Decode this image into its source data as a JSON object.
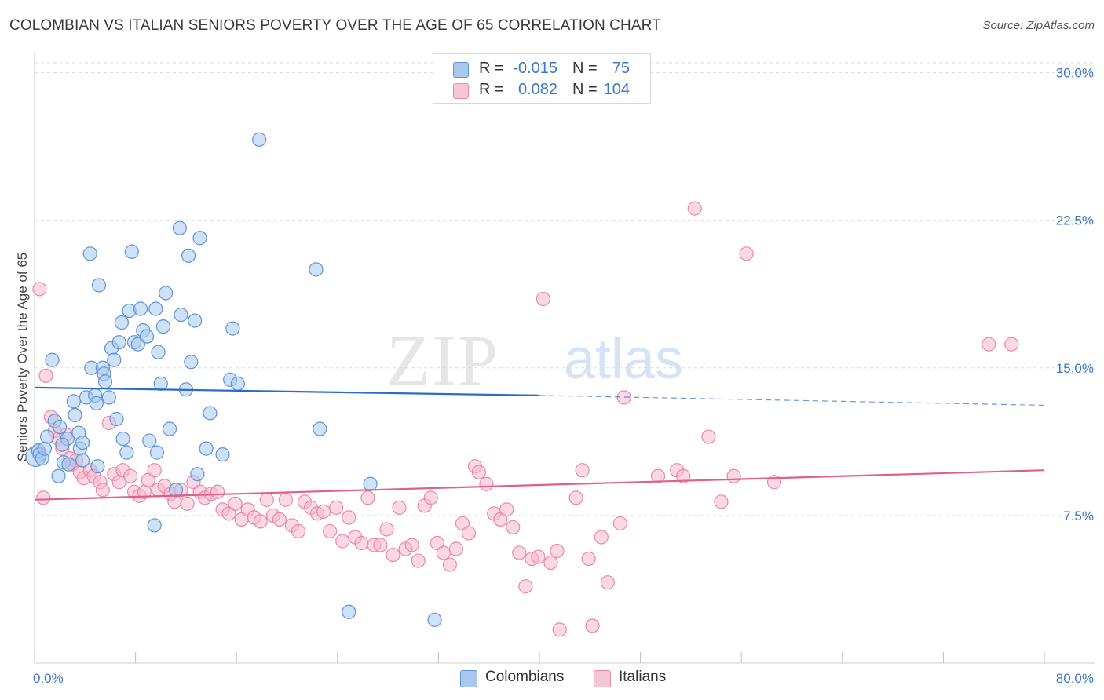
{
  "header": {
    "title": "COLOMBIAN VS ITALIAN SENIORS POVERTY OVER THE AGE OF 65 CORRELATION CHART",
    "source": "Source: ZipAtlas.com"
  },
  "watermark": {
    "zip": "ZIP",
    "atlas": "atlas"
  },
  "legend": {
    "rows": [
      {
        "r_label": "R =",
        "r_value": "-0.015",
        "n_label": "N =",
        "n_value": "75"
      },
      {
        "r_label": "R =",
        "r_value": "0.082",
        "n_label": "N =",
        "n_value": "104"
      }
    ]
  },
  "bottom_legend": {
    "colombians": "Colombians",
    "italians": "Italians"
  },
  "colors": {
    "colombian_fill": "#a8c8f0",
    "colombian_stroke": "#5f93d6",
    "colombian_line": "#2a6dc9",
    "italian_fill": "#f7b8cc",
    "italian_stroke": "#e989a8",
    "italian_line": "#e0608a",
    "tick_text": "#3a78c9",
    "grid": "#dcdcdc"
  },
  "chart_data": {
    "type": "scatter",
    "title": "COLOMBIAN VS ITALIAN SENIORS POVERTY OVER THE AGE OF 65 CORRELATION CHART",
    "xlabel": "",
    "ylabel": "Seniors Poverty Over the Age of 65",
    "xlim": [
      0,
      80
    ],
    "ylim": [
      0,
      30.5
    ],
    "x_tick_labels": [
      "0.0%",
      "80.0%"
    ],
    "y_ticks": [
      7.5,
      15.0,
      22.5,
      30.0
    ],
    "y_tick_labels": [
      "7.5%",
      "15.0%",
      "22.5%",
      "30.0%"
    ],
    "grid": "horizontal dashed",
    "legend_position": "top-center",
    "series": [
      {
        "name": "Colombians",
        "r": -0.015,
        "n": 75,
        "trend": {
          "x": [
            0,
            40
          ],
          "y": [
            14.0,
            13.6
          ],
          "dashed_extension": {
            "x": [
              40,
              80
            ],
            "y": [
              13.6,
              13.1
            ]
          }
        },
        "points": [
          [
            0.1,
            10.5,
            1.5
          ],
          [
            0.3,
            10.8,
            1
          ],
          [
            0.4,
            10.6,
            1
          ],
          [
            0.6,
            10.4,
            1
          ],
          [
            0.8,
            10.9,
            1
          ],
          [
            1.0,
            11.5,
            1
          ],
          [
            1.4,
            15.4,
            1
          ],
          [
            1.6,
            12.3,
            1
          ],
          [
            1.9,
            9.5,
            1
          ],
          [
            2.0,
            12.0,
            1
          ],
          [
            2.3,
            10.2,
            1
          ],
          [
            2.6,
            11.4,
            1
          ],
          [
            2.7,
            10.1,
            1
          ],
          [
            3.1,
            13.3,
            1
          ],
          [
            3.2,
            12.6,
            1
          ],
          [
            3.5,
            11.7,
            1
          ],
          [
            3.6,
            10.9,
            1
          ],
          [
            3.8,
            10.3,
            1
          ],
          [
            4.1,
            13.5,
            1
          ],
          [
            4.4,
            20.8,
            1
          ],
          [
            4.5,
            15.0,
            1
          ],
          [
            4.8,
            13.6,
            1
          ],
          [
            4.9,
            13.2,
            1
          ],
          [
            5.1,
            19.2,
            1
          ],
          [
            5.4,
            15.0,
            1
          ],
          [
            5.5,
            14.7,
            1
          ],
          [
            5.6,
            14.3,
            1
          ],
          [
            5.9,
            13.5,
            1
          ],
          [
            6.1,
            16.0,
            1
          ],
          [
            6.3,
            15.4,
            1
          ],
          [
            6.5,
            12.4,
            1
          ],
          [
            6.7,
            16.3,
            1
          ],
          [
            6.9,
            17.3,
            1
          ],
          [
            7.0,
            11.4,
            1
          ],
          [
            7.3,
            10.7,
            1
          ],
          [
            7.5,
            17.9,
            1
          ],
          [
            7.7,
            20.9,
            1
          ],
          [
            7.9,
            16.3,
            1
          ],
          [
            8.2,
            16.2,
            1
          ],
          [
            8.4,
            18.0,
            1
          ],
          [
            8.6,
            16.9,
            1
          ],
          [
            8.9,
            16.6,
            1
          ],
          [
            9.1,
            11.3,
            1
          ],
          [
            9.6,
            18.0,
            1
          ],
          [
            9.7,
            10.7,
            1
          ],
          [
            9.8,
            15.8,
            1
          ],
          [
            10.0,
            14.2,
            1
          ],
          [
            10.2,
            17.1,
            1
          ],
          [
            10.4,
            18.8,
            1
          ],
          [
            10.7,
            11.9,
            1
          ],
          [
            11.2,
            8.8,
            1
          ],
          [
            11.5,
            22.1,
            1
          ],
          [
            11.6,
            17.7,
            1
          ],
          [
            12.0,
            13.9,
            1
          ],
          [
            12.2,
            20.7,
            1
          ],
          [
            12.4,
            15.3,
            1
          ],
          [
            12.7,
            17.4,
            1
          ],
          [
            12.9,
            9.6,
            1
          ],
          [
            13.1,
            21.6,
            1
          ],
          [
            13.6,
            10.9,
            1
          ],
          [
            13.9,
            12.7,
            1
          ],
          [
            14.9,
            10.6,
            1
          ],
          [
            15.5,
            14.4,
            1
          ],
          [
            15.7,
            17.0,
            1
          ],
          [
            16.1,
            14.2,
            1
          ],
          [
            17.8,
            26.6,
            1
          ],
          [
            22.3,
            20.0,
            1
          ],
          [
            22.6,
            11.9,
            1
          ],
          [
            24.9,
            2.6,
            1
          ],
          [
            26.6,
            9.1,
            1
          ],
          [
            31.7,
            2.2,
            1
          ],
          [
            9.5,
            7.0,
            1
          ],
          [
            3.8,
            11.2,
            1
          ],
          [
            5.0,
            10.0,
            1
          ],
          [
            2.2,
            11.1,
            1
          ]
        ]
      },
      {
        "name": "Italians",
        "r": 0.082,
        "n": 104,
        "trend": {
          "x": [
            0,
            80
          ],
          "y": [
            8.3,
            9.8
          ]
        },
        "points": [
          [
            0.4,
            19.0,
            1
          ],
          [
            0.9,
            14.6,
            1
          ],
          [
            1.3,
            12.5,
            1
          ],
          [
            1.6,
            11.8,
            1
          ],
          [
            1.9,
            11.4,
            1
          ],
          [
            2.2,
            10.9,
            1
          ],
          [
            2.5,
            11.6,
            1
          ],
          [
            2.8,
            10.4,
            1
          ],
          [
            3.0,
            10.1,
            1
          ],
          [
            3.3,
            10.3,
            1
          ],
          [
            3.6,
            9.7,
            1
          ],
          [
            3.9,
            9.4,
            1
          ],
          [
            4.4,
            9.8,
            1
          ],
          [
            4.7,
            9.5,
            1
          ],
          [
            5.2,
            9.2,
            1
          ],
          [
            5.4,
            8.8,
            1
          ],
          [
            5.9,
            12.2,
            1
          ],
          [
            6.3,
            9.6,
            1
          ],
          [
            6.7,
            9.2,
            1
          ],
          [
            7.0,
            9.8,
            1
          ],
          [
            7.6,
            9.5,
            1
          ],
          [
            7.9,
            8.7,
            1
          ],
          [
            8.3,
            8.5,
            1
          ],
          [
            8.7,
            8.7,
            1
          ],
          [
            9.0,
            9.3,
            1
          ],
          [
            9.5,
            9.8,
            1
          ],
          [
            9.8,
            8.8,
            1
          ],
          [
            10.3,
            9.0,
            1
          ],
          [
            10.8,
            8.6,
            1
          ],
          [
            11.1,
            8.2,
            1
          ],
          [
            11.6,
            8.8,
            1
          ],
          [
            12.1,
            8.1,
            1
          ],
          [
            12.6,
            9.2,
            1
          ],
          [
            13.1,
            8.7,
            1
          ],
          [
            13.5,
            8.4,
            1
          ],
          [
            14.0,
            8.6,
            1
          ],
          [
            14.5,
            8.7,
            1
          ],
          [
            14.9,
            7.8,
            1
          ],
          [
            15.4,
            7.6,
            1
          ],
          [
            15.9,
            8.1,
            1
          ],
          [
            16.4,
            7.3,
            1
          ],
          [
            16.9,
            7.8,
            1
          ],
          [
            17.4,
            7.4,
            1
          ],
          [
            17.9,
            7.2,
            1
          ],
          [
            18.4,
            8.3,
            1
          ],
          [
            18.9,
            7.5,
            1
          ],
          [
            19.4,
            7.3,
            1
          ],
          [
            19.9,
            8.3,
            1
          ],
          [
            20.4,
            7.0,
            1
          ],
          [
            20.9,
            6.7,
            1
          ],
          [
            21.4,
            8.2,
            1
          ],
          [
            21.9,
            7.9,
            1
          ],
          [
            22.4,
            7.6,
            1
          ],
          [
            22.9,
            7.7,
            1
          ],
          [
            23.4,
            6.7,
            1
          ],
          [
            23.9,
            7.9,
            1
          ],
          [
            24.4,
            6.2,
            1
          ],
          [
            24.9,
            7.4,
            1
          ],
          [
            25.4,
            6.4,
            1
          ],
          [
            25.9,
            6.1,
            1
          ],
          [
            26.4,
            8.4,
            1
          ],
          [
            26.9,
            6.0,
            1
          ],
          [
            27.4,
            6.0,
            1
          ],
          [
            27.9,
            6.8,
            1
          ],
          [
            28.4,
            5.5,
            1
          ],
          [
            28.9,
            7.9,
            1
          ],
          [
            29.4,
            5.8,
            1
          ],
          [
            29.9,
            6.0,
            1
          ],
          [
            30.4,
            5.2,
            1
          ],
          [
            30.9,
            8.0,
            1
          ],
          [
            31.4,
            8.4,
            1
          ],
          [
            31.9,
            6.1,
            1
          ],
          [
            32.4,
            5.6,
            1
          ],
          [
            32.9,
            5.0,
            1
          ],
          [
            33.4,
            5.8,
            1
          ],
          [
            33.9,
            7.1,
            1
          ],
          [
            34.4,
            6.6,
            1
          ],
          [
            34.9,
            10.0,
            1
          ],
          [
            35.2,
            9.7,
            1
          ],
          [
            35.8,
            9.1,
            1
          ],
          [
            36.4,
            7.6,
            1
          ],
          [
            36.9,
            7.3,
            1
          ],
          [
            37.4,
            7.8,
            1
          ],
          [
            37.9,
            6.9,
            1
          ],
          [
            38.4,
            5.6,
            1
          ],
          [
            38.9,
            3.9,
            1
          ],
          [
            39.4,
            5.3,
            1
          ],
          [
            39.9,
            5.4,
            1
          ],
          [
            40.9,
            5.1,
            1
          ],
          [
            41.4,
            5.7,
            1
          ],
          [
            41.6,
            1.7,
            1
          ],
          [
            40.3,
            18.5,
            1
          ],
          [
            42.9,
            8.4,
            1
          ],
          [
            43.4,
            9.8,
            1
          ],
          [
            43.9,
            5.3,
            1
          ],
          [
            44.2,
            1.9,
            1
          ],
          [
            44.9,
            6.4,
            1
          ],
          [
            45.4,
            4.1,
            1
          ],
          [
            46.4,
            7.1,
            1
          ],
          [
            46.7,
            13.5,
            1
          ],
          [
            49.4,
            9.5,
            1
          ],
          [
            50.9,
            9.8,
            1
          ],
          [
            51.4,
            9.5,
            1
          ],
          [
            53.4,
            11.5,
            1
          ],
          [
            52.3,
            23.1,
            1
          ],
          [
            54.4,
            8.2,
            1
          ],
          [
            55.4,
            9.5,
            1
          ],
          [
            58.6,
            9.2,
            1
          ],
          [
            56.4,
            20.8,
            1
          ],
          [
            75.6,
            16.2,
            1
          ],
          [
            77.4,
            16.2,
            1
          ],
          [
            0.7,
            8.4,
            1
          ]
        ]
      }
    ]
  }
}
